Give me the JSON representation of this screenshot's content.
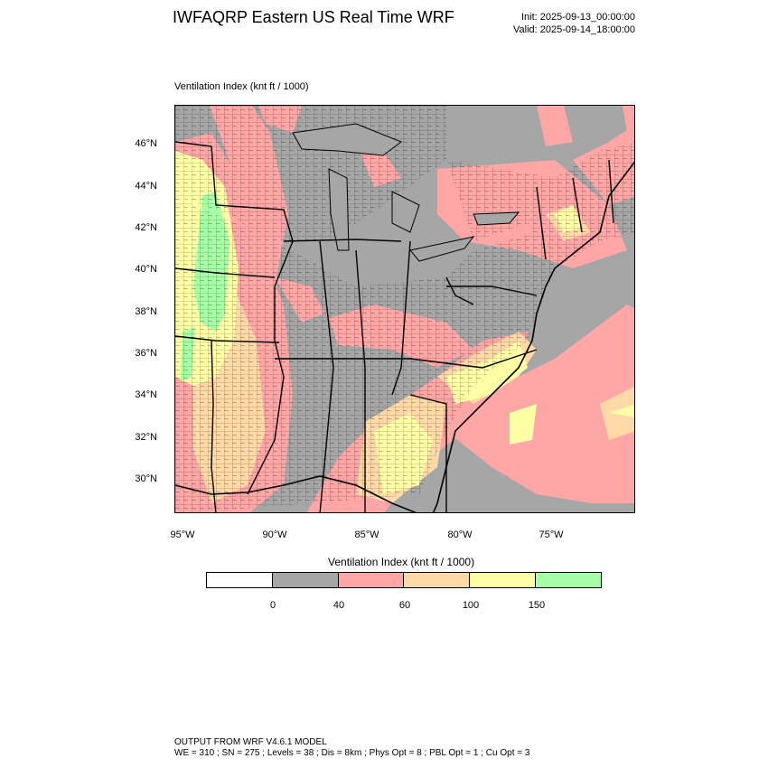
{
  "header": {
    "title": "IWFAQRP Eastern US Real Time WRF",
    "init": "Init: 2025-09-13_00:00:00",
    "valid": "Valid: 2025-09-14_18:00:00"
  },
  "map": {
    "subtitle": "Ventilation Index   (knt ft / 1000)",
    "lat_labels": [
      "46°N",
      "44°N",
      "42°N",
      "40°N",
      "38°N",
      "36°N",
      "34°N",
      "32°N",
      "30°N"
    ],
    "lon_labels": [
      "95°W",
      "90°W",
      "85°W",
      "80°W",
      "75°W"
    ],
    "colors": {
      "below_0": "#ffffff",
      "0_40": "#a6a6a6",
      "40_60": "#ffa6a6",
      "60_100": "#ffd9a6",
      "100_150": "#ffffa6",
      "above_150": "#a6ffa6"
    }
  },
  "colorbar": {
    "title": "Ventilation Index  (knt ft / 1000)",
    "boxes": [
      "#ffffff",
      "#a6a6a6",
      "#ffa6a6",
      "#ffd9a6",
      "#ffffa6",
      "#a6ffa6"
    ],
    "labels": [
      "0",
      "40",
      "60",
      "100",
      "150"
    ]
  },
  "footer": {
    "line1": "OUTPUT FROM WRF V4.6.1 MODEL",
    "line2": "WE = 310 ; SN = 275 ; Levels = 38 ; Dis = 8km ; Phys Opt = 8 ; PBL Opt = 1 ; Cu Opt = 3"
  }
}
